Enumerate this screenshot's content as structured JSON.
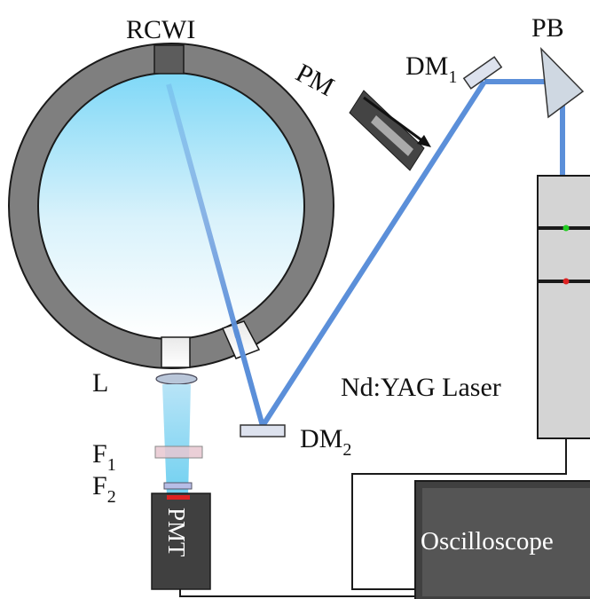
{
  "labels": {
    "rcwi": "RCWI",
    "pb": "PB",
    "dm1_main": "DM",
    "dm1_sub": "1",
    "pm": "PM",
    "l": "L",
    "laser": "Nd:YAG Laser",
    "dm2_main": "DM",
    "dm2_sub": "2",
    "f1_main": "F",
    "f1_sub": "1",
    "f2_main": "F",
    "f2_sub": "2",
    "pmt": "PMT",
    "oscilloscope": "Oscilloscope"
  },
  "colors": {
    "ring": "#7f7f7f",
    "beam": "#5b8fd9",
    "dark_component": "#444444",
    "laser_body": "#d4d4d4",
    "oscilloscope_frame": "#404040",
    "oscilloscope_screen": "#555555",
    "filter1": "#e8c7d0",
    "filter2": "#b7bde6",
    "led_green": "#22cc22",
    "led_red": "#dd2222",
    "pmt_window": "#dd2222"
  }
}
